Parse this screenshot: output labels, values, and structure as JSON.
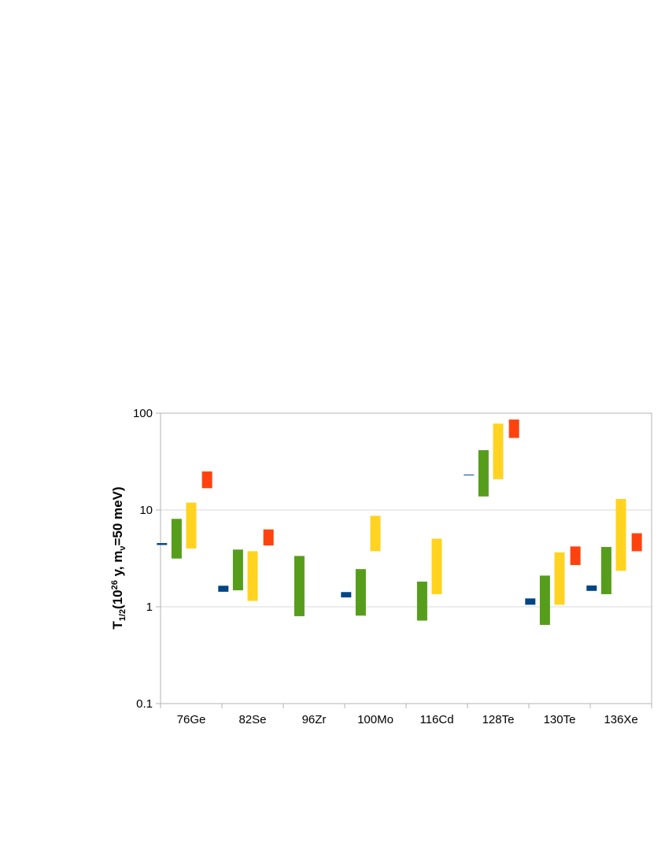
{
  "chart_data": {
    "type": "bar",
    "subtype": "floating-range",
    "ylabel": {
      "main": "T",
      "sub": "1/2",
      "open": "(10",
      "sup": "26",
      "mid": " y, m",
      "nu": "ν",
      "tail": "=50 meV)"
    },
    "y_scale": "log",
    "ylim": [
      0.1,
      100
    ],
    "y_ticks": [
      {
        "value": 0.1,
        "label": "0.1"
      },
      {
        "value": 1,
        "label": "1"
      },
      {
        "value": 10,
        "label": "10"
      },
      {
        "value": 100,
        "label": "100"
      }
    ],
    "grid": true,
    "categories": [
      "76Ge",
      "82Se",
      "96Zr",
      "100Mo",
      "116Cd",
      "128Te",
      "130Te",
      "136Xe"
    ],
    "series": [
      {
        "color": "#004586",
        "ranges": [
          [
            4.35,
            4.55
          ],
          [
            1.43,
            1.65
          ],
          null,
          [
            1.25,
            1.42
          ],
          null,
          [
            23.0,
            23.2
          ],
          [
            1.05,
            1.22
          ],
          [
            1.46,
            1.66
          ]
        ]
      },
      {
        "color": "#579d1c",
        "ranges": [
          [
            3.15,
            8.1
          ],
          [
            1.48,
            3.9
          ],
          [
            0.8,
            3.35
          ],
          [
            0.81,
            2.45
          ],
          [
            0.72,
            1.82
          ],
          [
            13.8,
            41.5
          ],
          [
            0.65,
            2.1
          ],
          [
            1.35,
            4.15
          ]
        ]
      },
      {
        "color": "#ffd320",
        "ranges": [
          [
            4.0,
            11.9
          ],
          [
            1.15,
            3.75
          ],
          null,
          [
            3.75,
            8.7
          ],
          [
            1.35,
            5.05
          ],
          [
            20.8,
            78
          ],
          [
            1.05,
            3.65
          ],
          [
            2.35,
            13.0
          ]
        ]
      },
      {
        "color": "#ff420e",
        "ranges": [
          [
            16.8,
            25.0
          ],
          [
            4.3,
            6.3
          ],
          null,
          null,
          null,
          [
            55.5,
            86
          ],
          [
            2.7,
            4.2
          ],
          [
            3.75,
            5.75
          ]
        ]
      }
    ]
  }
}
